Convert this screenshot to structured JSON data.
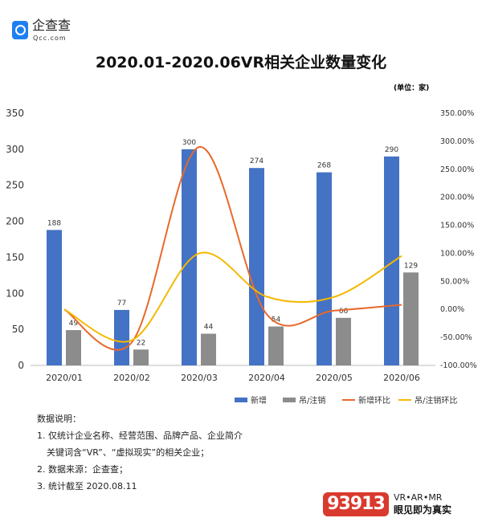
{
  "header": {
    "logo_text": "企查查",
    "logo_sub": "Qcc.com",
    "title": "2020.01-2020.06VR相关企业数量变化",
    "unit": "(单位：家)"
  },
  "chart_data": {
    "type": "bar",
    "categories": [
      "2020/01",
      "2020/02",
      "2020/03",
      "2020/04",
      "2020/05",
      "2020/06"
    ],
    "series": [
      {
        "name": "新增",
        "type": "bar",
        "axis": "left",
        "color": "#4472c4",
        "values": [
          188,
          77,
          300,
          274,
          268,
          290
        ]
      },
      {
        "name": "吊/注销",
        "type": "bar",
        "axis": "left",
        "color": "#8c8c8c",
        "values": [
          49,
          22,
          44,
          54,
          66,
          129
        ]
      },
      {
        "name": "新增环比",
        "type": "line",
        "axis": "right",
        "color": "#e8692b",
        "values": [
          0,
          -59.0,
          289.6,
          -8.7,
          -2.2,
          8.2
        ]
      },
      {
        "name": "吊/注销环比",
        "type": "line",
        "axis": "right",
        "color": "#f5b800",
        "values": [
          0,
          -55.1,
          100.0,
          22.7,
          22.2,
          95.5
        ]
      }
    ],
    "ylim": [
      0,
      350
    ],
    "yticks": [
      "0",
      "50",
      "100",
      "150",
      "200",
      "250",
      "300",
      "350"
    ],
    "y2lim": [
      -100,
      350
    ],
    "y2ticks": [
      "-100.00%",
      "-50.00%",
      "0.00%",
      "50.00%",
      "100.00%",
      "150.00%",
      "200.00%",
      "250.00%",
      "300.00%",
      "350.00%"
    ],
    "legend": "bottom-right"
  },
  "notes": {
    "heading": "数据说明：",
    "l1": "1. 仅统计企业名称、经营范围、品牌产品、企业简介",
    "l1b": "关键词含“VR”、“虚拟现实”的相关企业；",
    "l2": "2. 数据来源：企查查；",
    "l3": "3. 统计截至 2020.08.11"
  },
  "brand": {
    "badge": "93913",
    "line1": "VR•AR•MR",
    "line2": "眼见即为真实"
  }
}
